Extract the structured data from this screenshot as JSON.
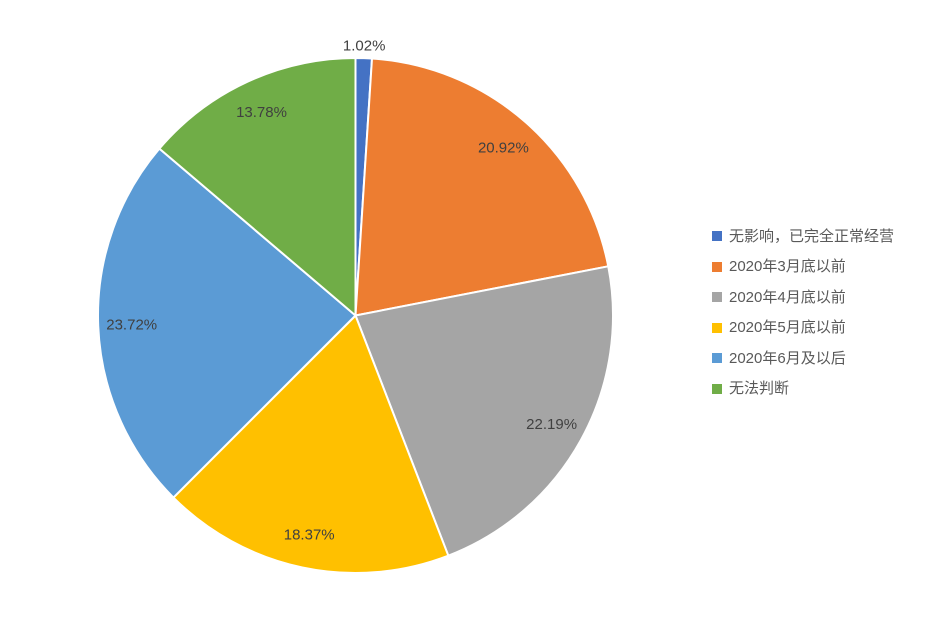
{
  "chart_data": {
    "type": "pie",
    "title": "",
    "start_angle_deg": 0,
    "direction": "clockwise",
    "legend_position": "right",
    "background": "#FFFFFF",
    "label_color": "#404040",
    "legend_text_color": "#595959",
    "slices": [
      {
        "label": "无影响，已完全正常经营",
        "value": 1.02,
        "display": "1.02%",
        "color": "#4472C4",
        "label_placement": "outside"
      },
      {
        "label": "2020年3月底以前",
        "value": 20.92,
        "display": "20.92%",
        "color": "#ED7D31",
        "label_placement": "inside"
      },
      {
        "label": "2020年4月底以前",
        "value": 22.19,
        "display": "22.19%",
        "color": "#A5A5A5",
        "label_placement": "inside"
      },
      {
        "label": "2020年5月底以前",
        "value": 18.37,
        "display": "18.37%",
        "color": "#FFC000",
        "label_placement": "inside"
      },
      {
        "label": "2020年6月及以后",
        "value": 23.72,
        "display": "23.72%",
        "color": "#5B9BD5",
        "label_placement": "inside"
      },
      {
        "label": "无法判断",
        "value": 13.78,
        "display": "13.78%",
        "color": "#70AD47",
        "label_placement": "inside"
      }
    ]
  }
}
